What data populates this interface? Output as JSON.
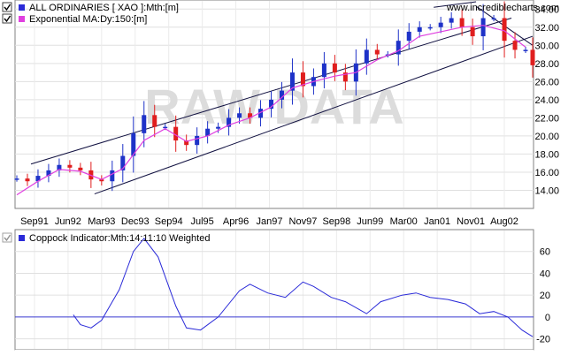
{
  "website": "www.incrediblecharts.com",
  "watermark": "RAW DATA",
  "upper_panel": {
    "legend": [
      {
        "label": "ALL ORDINARIES [ XAO ]:Mth:[m]",
        "color": "#2a2ad8",
        "checked": true
      },
      {
        "label": "Exponential MA:Dy:150:[m]",
        "color": "#e040e0",
        "checked": true
      }
    ]
  },
  "lower_panel": {
    "legend": [
      {
        "label": "Coppock Indicator:Mth:14:11:10 Weighted",
        "color": "#2a2ad8",
        "checked": true
      }
    ]
  },
  "chart_data": [
    {
      "type": "candlestick",
      "title": "ALL ORDINARIES [ XAO ]:Mth:[m]",
      "ylim": [
        12,
        35
      ],
      "yticks": [
        14,
        16,
        18,
        20,
        22,
        24,
        26,
        28,
        30,
        32,
        34
      ],
      "ytick_labels": [
        "14.00",
        "16.00",
        "18.00",
        "20.00",
        "22.00",
        "24.00",
        "26.00",
        "28.00",
        "30.00",
        "32.00",
        "34.00"
      ],
      "x_tick_labels": [
        "Sep91",
        "Jun92",
        "Mar93",
        "Dec93",
        "Sep94",
        "Jul95",
        "Apr96",
        "Jan97",
        "Nov97",
        "Sep98",
        "Jun99",
        "Mar00",
        "Jan01",
        "Nov01",
        "Aug02"
      ],
      "x_start": "1991-01",
      "x_end": "2003-03",
      "grid": true,
      "series": [
        {
          "name": "ALL ORDINARIES [ XAO ]",
          "type": "candlestick",
          "up_color": "#1e32c8",
          "down_color": "#e01e1e",
          "points": [
            {
              "x": "1991-01",
              "y": 15.3
            },
            {
              "x": "1991-04",
              "y": 15.0
            },
            {
              "x": "1991-07",
              "y": 15.6
            },
            {
              "x": "1991-10",
              "y": 16.2
            },
            {
              "x": "1992-01",
              "y": 16.8
            },
            {
              "x": "1992-04",
              "y": 16.5
            },
            {
              "x": "1992-07",
              "y": 16.2
            },
            {
              "x": "1992-10",
              "y": 15.2
            },
            {
              "x": "1993-01",
              "y": 15.0
            },
            {
              "x": "1993-04",
              "y": 16.2
            },
            {
              "x": "1993-07",
              "y": 17.8
            },
            {
              "x": "1993-10",
              "y": 20.3
            },
            {
              "x": "1994-01",
              "y": 22.3
            },
            {
              "x": "1994-04",
              "y": 21.0
            },
            {
              "x": "1994-07",
              "y": 21.0
            },
            {
              "x": "1994-10",
              "y": 19.5
            },
            {
              "x": "1995-01",
              "y": 19.0
            },
            {
              "x": "1995-04",
              "y": 20.0
            },
            {
              "x": "1995-07",
              "y": 20.8
            },
            {
              "x": "1995-10",
              "y": 21.0
            },
            {
              "x": "1996-01",
              "y": 22.0
            },
            {
              "x": "1996-04",
              "y": 22.5
            },
            {
              "x": "1996-07",
              "y": 22.0
            },
            {
              "x": "1996-10",
              "y": 23.0
            },
            {
              "x": "1997-01",
              "y": 24.0
            },
            {
              "x": "1997-04",
              "y": 25.0
            },
            {
              "x": "1997-07",
              "y": 27.0
            },
            {
              "x": "1997-10",
              "y": 25.5
            },
            {
              "x": "1998-01",
              "y": 26.5
            },
            {
              "x": "1998-04",
              "y": 28.0
            },
            {
              "x": "1998-07",
              "y": 27.0
            },
            {
              "x": "1998-10",
              "y": 26.0
            },
            {
              "x": "1999-01",
              "y": 28.0
            },
            {
              "x": "1999-04",
              "y": 29.5
            },
            {
              "x": "1999-07",
              "y": 29.0
            },
            {
              "x": "1999-10",
              "y": 29.0
            },
            {
              "x": "2000-01",
              "y": 30.5
            },
            {
              "x": "2000-04",
              "y": 31.5
            },
            {
              "x": "2000-07",
              "y": 32.0
            },
            {
              "x": "2000-10",
              "y": 32.0
            },
            {
              "x": "2001-01",
              "y": 32.5
            },
            {
              "x": "2001-04",
              "y": 33.0
            },
            {
              "x": "2001-07",
              "y": 32.0
            },
            {
              "x": "2001-10",
              "y": 31.0
            },
            {
              "x": "2002-01",
              "y": 33.0
            },
            {
              "x": "2002-04",
              "y": 33.0
            },
            {
              "x": "2002-07",
              "y": 30.5
            },
            {
              "x": "2002-10",
              "y": 29.5
            },
            {
              "x": "2003-01",
              "y": 29.5
            },
            {
              "x": "2003-03",
              "y": 27.8
            }
          ]
        },
        {
          "name": "Exponential MA:Dy:150",
          "type": "line",
          "color": "#e040e0",
          "points": [
            {
              "x": "1991-01",
              "y": 13.5
            },
            {
              "x": "1991-07",
              "y": 15.0
            },
            {
              "x": "1992-01",
              "y": 16.3
            },
            {
              "x": "1992-07",
              "y": 16.1
            },
            {
              "x": "1993-01",
              "y": 15.2
            },
            {
              "x": "1993-07",
              "y": 16.4
            },
            {
              "x": "1994-01",
              "y": 19.5
            },
            {
              "x": "1994-07",
              "y": 20.8
            },
            {
              "x": "1995-01",
              "y": 19.4
            },
            {
              "x": "1995-07",
              "y": 20.0
            },
            {
              "x": "1996-01",
              "y": 21.2
            },
            {
              "x": "1996-07",
              "y": 22.0
            },
            {
              "x": "1997-01",
              "y": 23.2
            },
            {
              "x": "1997-07",
              "y": 25.3
            },
            {
              "x": "1998-01",
              "y": 26.0
            },
            {
              "x": "1998-07",
              "y": 26.6
            },
            {
              "x": "1999-01",
              "y": 27.0
            },
            {
              "x": "1999-07",
              "y": 28.4
            },
            {
              "x": "2000-01",
              "y": 29.4
            },
            {
              "x": "2000-07",
              "y": 31.0
            },
            {
              "x": "2001-01",
              "y": 31.5
            },
            {
              "x": "2001-07",
              "y": 32.0
            },
            {
              "x": "2002-01",
              "y": 32.2
            },
            {
              "x": "2002-07",
              "y": 31.6
            },
            {
              "x": "2003-01",
              "y": 29.8
            }
          ]
        }
      ],
      "trend_lines": [
        {
          "from": {
            "x": "1991-05",
            "y": 16.9
          },
          "to": {
            "x": "2002-09",
            "y": 33.0
          }
        },
        {
          "from": {
            "x": "1992-11",
            "y": 13.6
          },
          "to": {
            "x": "2003-03",
            "y": 31.0
          }
        },
        {
          "from": {
            "x": "2000-11",
            "y": 34.2
          },
          "to": {
            "x": "2001-11",
            "y": 34.8
          }
        },
        {
          "from": {
            "x": "2001-11",
            "y": 34.3
          },
          "to": {
            "x": "2003-03",
            "y": 30.0
          }
        }
      ]
    },
    {
      "type": "line",
      "title": "Coppock Indicator:Mth:14:11:10 Weighted",
      "ylim": [
        -30,
        80
      ],
      "yticks": [
        60,
        40,
        20,
        0,
        -20
      ],
      "ytick_labels": [
        "60",
        "40",
        "20",
        "0",
        "-20"
      ],
      "zero_line": true,
      "grid": true,
      "series": [
        {
          "name": "Coppock Indicator",
          "color": "#2a2ad8",
          "points": [
            {
              "x": "1992-05",
              "y": 2
            },
            {
              "x": "1992-07",
              "y": -7
            },
            {
              "x": "1992-10",
              "y": -10
            },
            {
              "x": "1993-01",
              "y": -3
            },
            {
              "x": "1993-06",
              "y": 25
            },
            {
              "x": "1993-10",
              "y": 60
            },
            {
              "x": "1994-01",
              "y": 72
            },
            {
              "x": "1994-05",
              "y": 55
            },
            {
              "x": "1994-10",
              "y": 10
            },
            {
              "x": "1995-01",
              "y": -10
            },
            {
              "x": "1995-05",
              "y": -12
            },
            {
              "x": "1995-10",
              "y": 0
            },
            {
              "x": "1996-04",
              "y": 24
            },
            {
              "x": "1996-07",
              "y": 30
            },
            {
              "x": "1996-12",
              "y": 22
            },
            {
              "x": "1997-05",
              "y": 18
            },
            {
              "x": "1997-10",
              "y": 32
            },
            {
              "x": "1998-01",
              "y": 28
            },
            {
              "x": "1998-06",
              "y": 18
            },
            {
              "x": "1998-10",
              "y": 14
            },
            {
              "x": "1999-04",
              "y": 3
            },
            {
              "x": "1999-08",
              "y": 14
            },
            {
              "x": "2000-02",
              "y": 20
            },
            {
              "x": "2000-06",
              "y": 22
            },
            {
              "x": "2000-10",
              "y": 18
            },
            {
              "x": "2001-03",
              "y": 16
            },
            {
              "x": "2001-08",
              "y": 12
            },
            {
              "x": "2001-12",
              "y": 3
            },
            {
              "x": "2002-04",
              "y": 5
            },
            {
              "x": "2002-08",
              "y": 0
            },
            {
              "x": "2002-12",
              "y": -12
            },
            {
              "x": "2003-03",
              "y": -18
            }
          ]
        }
      ]
    }
  ]
}
